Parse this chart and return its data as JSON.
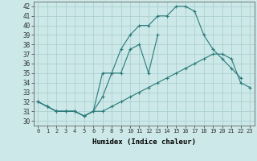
{
  "xlabel": "Humidex (Indice chaleur)",
  "ylabel": "",
  "xlim": [
    -0.5,
    23.5
  ],
  "ylim": [
    29.5,
    42.5
  ],
  "yticks": [
    30,
    31,
    32,
    33,
    34,
    35,
    36,
    37,
    38,
    39,
    40,
    41,
    42
  ],
  "xticks": [
    0,
    1,
    2,
    3,
    4,
    5,
    6,
    7,
    8,
    9,
    10,
    11,
    12,
    13,
    14,
    15,
    16,
    17,
    18,
    19,
    20,
    21,
    22,
    23
  ],
  "background_color": "#cce8e8",
  "grid_color": "#a8cccc",
  "line_color": "#2a7a7a",
  "line1_x": [
    0,
    1,
    2,
    3,
    4,
    5,
    6,
    7,
    8,
    9,
    10,
    11,
    12,
    13,
    14,
    15,
    16,
    17,
    18,
    19,
    20,
    21,
    22,
    23
  ],
  "line1_y": [
    32,
    31.5,
    31,
    31,
    31,
    30.5,
    31,
    31,
    31.5,
    32,
    32.5,
    33,
    33.5,
    34,
    34.5,
    35,
    35.5,
    36,
    36.5,
    37,
    37,
    36.5,
    34,
    33.5
  ],
  "line2_x": [
    0,
    1,
    2,
    3,
    4,
    5,
    6,
    7,
    8,
    9,
    10,
    11,
    12,
    13,
    14,
    15,
    16,
    17,
    18,
    19,
    20,
    21,
    22
  ],
  "line2_y": [
    32,
    31.5,
    31,
    31,
    31,
    30.5,
    31,
    35,
    35,
    37.5,
    39,
    40,
    40,
    41,
    41,
    42,
    42,
    41.5,
    39,
    37.5,
    36.5,
    35.5,
    34.5
  ],
  "line3_x": [
    0,
    1,
    2,
    3,
    4,
    5,
    6,
    7,
    8,
    9,
    10,
    11,
    12,
    13
  ],
  "line3_y": [
    32,
    31.5,
    31,
    31,
    31,
    30.5,
    31,
    32.5,
    35,
    35,
    37.5,
    38,
    35,
    39
  ]
}
